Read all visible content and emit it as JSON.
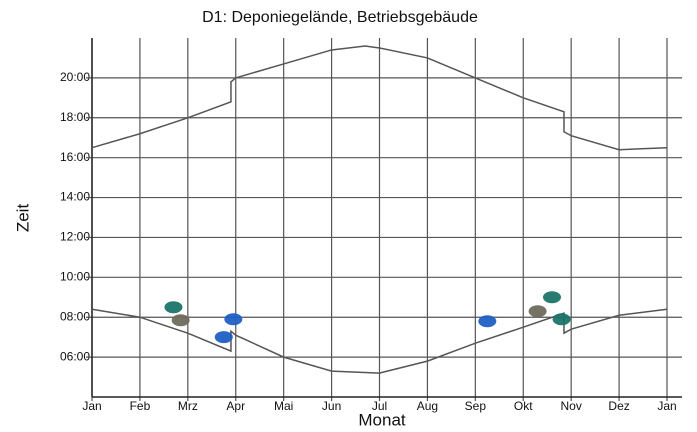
{
  "chart_data": {
    "type": "line",
    "title": "D1: Deponiegelände, Betriebsgebäude",
    "xlabel": "Monat",
    "ylabel": "Zeit",
    "xlim": [
      0,
      12
    ],
    "xticks": [
      {
        "value": 0,
        "label": "Jan"
      },
      {
        "value": 1,
        "label": "Feb"
      },
      {
        "value": 2,
        "label": "Mrz"
      },
      {
        "value": 3,
        "label": "Apr"
      },
      {
        "value": 4,
        "label": "Mai"
      },
      {
        "value": 5,
        "label": "Jun"
      },
      {
        "value": 6,
        "label": "Jul"
      },
      {
        "value": 7,
        "label": "Aug"
      },
      {
        "value": 8,
        "label": "Sep"
      },
      {
        "value": 9,
        "label": "Okt"
      },
      {
        "value": 10,
        "label": "Nov"
      },
      {
        "value": 11,
        "label": "Dez"
      },
      {
        "value": 12,
        "label": "Jan"
      }
    ],
    "ylim": [
      4,
      22
    ],
    "yticks": [
      {
        "value": 6,
        "label": "06:00"
      },
      {
        "value": 8,
        "label": "08:00"
      },
      {
        "value": 10,
        "label": "10:00"
      },
      {
        "value": 12,
        "label": "12:00"
      },
      {
        "value": 14,
        "label": "14:00"
      },
      {
        "value": 16,
        "label": "16:00"
      },
      {
        "value": 18,
        "label": "18:00"
      },
      {
        "value": 20,
        "label": "20:00"
      }
    ],
    "grid": true,
    "series": [
      {
        "color": "#555555",
        "x": [
          0,
          1,
          2,
          2.9,
          2.9,
          3,
          4,
          5,
          5.7,
          6,
          7,
          8,
          9,
          9.85,
          9.85,
          10,
          11,
          12
        ],
        "y": [
          16.5,
          17.2,
          18.0,
          18.8,
          19.8,
          20.0,
          20.7,
          21.4,
          21.6,
          21.5,
          21.0,
          20.0,
          19.0,
          18.3,
          17.3,
          17.1,
          16.4,
          16.5
        ]
      },
      {
        "color": "#555555",
        "x": [
          0,
          1,
          2,
          2.9,
          2.9,
          3,
          4,
          5,
          6,
          7,
          8,
          9,
          9.85,
          9.85,
          10,
          11,
          12
        ],
        "y": [
          8.4,
          8.0,
          7.2,
          6.3,
          7.3,
          7.1,
          6.0,
          5.3,
          5.2,
          5.8,
          6.7,
          7.5,
          8.2,
          7.2,
          7.4,
          8.1,
          8.4
        ]
      }
    ],
    "points": [
      {
        "color": "#1b7468",
        "x": [
          1.7,
          9.6,
          9.8
        ],
        "y": [
          8.5,
          9.0,
          7.9
        ]
      },
      {
        "color": "#6f6a5c",
        "x": [
          1.85,
          9.3
        ],
        "y": [
          7.85,
          8.3
        ]
      },
      {
        "color": "#1f5fc4",
        "x": [
          2.75,
          2.95,
          8.25
        ],
        "y": [
          7.0,
          7.9,
          7.8
        ]
      }
    ]
  }
}
